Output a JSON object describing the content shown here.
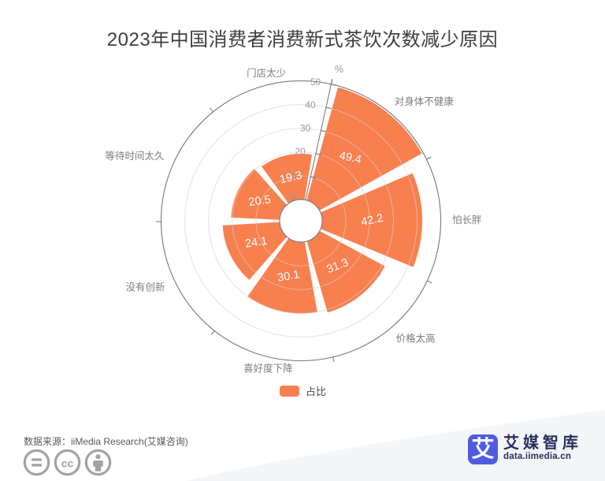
{
  "title": "2023年中国消费者消费新式茶饮次数减少原因",
  "chart_data": {
    "type": "rose",
    "title": "2023年中国消费者消费新式茶饮次数减少原因",
    "categories": [
      "对身体不健康",
      "怕长胖",
      "价格太高",
      "喜好度下降",
      "没有创新",
      "等待时间太久",
      "门店太少"
    ],
    "values": [
      49.4,
      42.2,
      31.3,
      30.1,
      24.1,
      20.5,
      19.3
    ],
    "series_name": "占比",
    "unit": "%",
    "radial_axis": {
      "min": 0,
      "max": 50,
      "ticks": [
        0,
        10,
        20,
        30,
        40,
        50
      ]
    },
    "legend": {
      "label": "占比",
      "position": "bottom"
    },
    "grid": true,
    "colors": {
      "sector": "#f8804f",
      "gridline": "#dfe4f2",
      "axis_line": "#6e7079",
      "tick_label": "#999999",
      "category_label": "#7d7d7d",
      "value_label": "#ffffff"
    }
  },
  "footer": {
    "source": "数据来源：iiMedia Research(艾媒咨询)",
    "license_icons": [
      "equals-icon",
      "cc-icon",
      "person-icon"
    ],
    "icon_color": "#a3a3a3"
  },
  "logo": {
    "mark": "艾",
    "name": "艾媒智库",
    "domain": "data.iimedia.cn",
    "brand_color": "#4f5ce2",
    "text_color": "#27305e"
  }
}
